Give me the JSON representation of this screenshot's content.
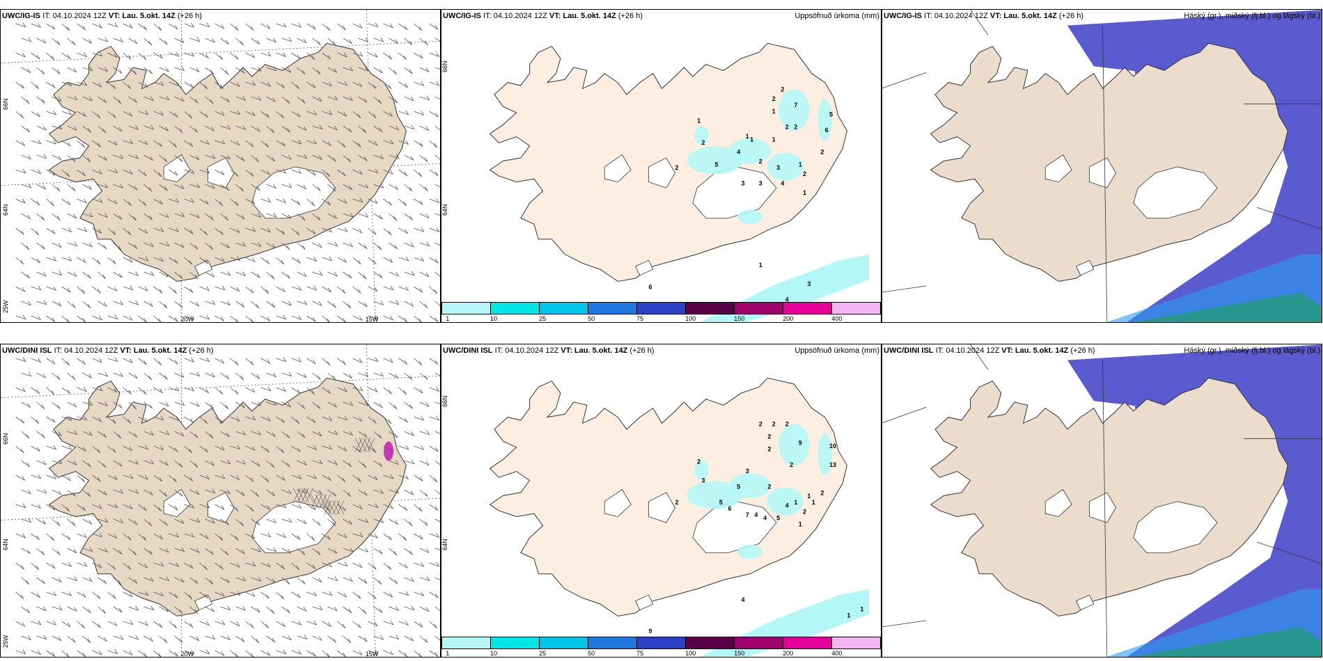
{
  "panels": [
    {
      "id": "wind-ig",
      "model": "UWC/IG-IS",
      "it": "IT: 04.10.2024 12Z",
      "vt": "VT: Lau. 5.okt. 14Z",
      "lead": "(+26 h)",
      "right": "",
      "type": "wind"
    },
    {
      "id": "precip-ig",
      "model": "UWC/IG-IS",
      "it": "IT: 04.10.2024 12Z",
      "vt": "VT: Lau. 5.okt. 14Z",
      "lead": "(+26 h)",
      "right": "Uppsöfnuð úrkoma (mm)",
      "type": "precip"
    },
    {
      "id": "cloud-ig",
      "model": "UWC/IG-IS",
      "it": "IT: 04.10.2024 12Z",
      "vt": "VT: Lau. 5.okt. 14Z",
      "lead": "(+26 h)",
      "right": "Háský (gr.), miðský (fj.bl.) og lágský (bl.)",
      "type": "cloud"
    },
    {
      "id": "wind-dini",
      "model": "UWC/DINI ISL",
      "it": "IT: 04.10.2024 12Z",
      "vt": "VT: Lau. 5.okt. 14Z",
      "lead": "(+26 h)",
      "right": "",
      "type": "wind"
    },
    {
      "id": "precip-dini",
      "model": "UWC/DINI ISL",
      "it": "IT: 04.10.2024 12Z",
      "vt": "VT: Lau. 5.okt. 14Z",
      "lead": "(+26 h)",
      "right": "Uppsöfnuð úrkoma (mm)",
      "type": "precip"
    },
    {
      "id": "cloud-dini",
      "model": "UWC/DINI ISL",
      "it": "IT: 04.10.2024 12Z",
      "vt": "VT: Lau. 5.okt. 14Z",
      "lead": "(+26 h)",
      "right": "Háský (gr.), miðský (fj.bl.) og lágský (bl.)",
      "type": "cloud"
    }
  ],
  "lat_labels": [
    "66N",
    "64N"
  ],
  "lat_labels_right": [
    "66N",
    "64N"
  ],
  "lon_labels": [
    "25W",
    "20W",
    "15W"
  ],
  "colorbar": {
    "ticks": [
      "1",
      "10",
      "25",
      "50",
      "75",
      "100",
      "150",
      "200",
      "400"
    ],
    "colors": [
      "#b3f7f7",
      "#00e6e6",
      "#00c5e8",
      "#1f78e0",
      "#2b3fc7",
      "#5a0046",
      "#a0006b",
      "#e6009a",
      "#f4b4f4"
    ]
  },
  "precip_ig": [
    {
      "v": "1",
      "xf": 0.58,
      "yf": 0.36
    },
    {
      "v": "2",
      "xf": 0.59,
      "yf": 0.43
    },
    {
      "v": "2",
      "xf": 0.77,
      "yf": 0.26
    },
    {
      "v": "2",
      "xf": 0.75,
      "yf": 0.29
    },
    {
      "v": "1",
      "xf": 0.75,
      "yf": 0.33
    },
    {
      "v": "7",
      "xf": 0.8,
      "yf": 0.31
    },
    {
      "v": "5",
      "xf": 0.88,
      "yf": 0.34
    },
    {
      "v": "6",
      "xf": 0.87,
      "yf": 0.39
    },
    {
      "v": "2",
      "xf": 0.78,
      "yf": 0.38
    },
    {
      "v": "2",
      "xf": 0.8,
      "yf": 0.38
    },
    {
      "v": "1",
      "xf": 0.69,
      "yf": 0.41
    },
    {
      "v": "1",
      "xf": 0.7,
      "yf": 0.42
    },
    {
      "v": "1",
      "xf": 0.75,
      "yf": 0.42
    },
    {
      "v": "2",
      "xf": 0.86,
      "yf": 0.46
    },
    {
      "v": "4",
      "xf": 0.67,
      "yf": 0.46
    },
    {
      "v": "2",
      "xf": 0.72,
      "yf": 0.49
    },
    {
      "v": "5",
      "xf": 0.62,
      "yf": 0.5
    },
    {
      "v": "3",
      "xf": 0.76,
      "yf": 0.51
    },
    {
      "v": "1",
      "xf": 0.81,
      "yf": 0.5
    },
    {
      "v": "2",
      "xf": 0.82,
      "yf": 0.53
    },
    {
      "v": "3",
      "xf": 0.68,
      "yf": 0.56
    },
    {
      "v": "3",
      "xf": 0.72,
      "yf": 0.56
    },
    {
      "v": "4",
      "xf": 0.77,
      "yf": 0.56
    },
    {
      "v": "1",
      "xf": 0.82,
      "yf": 0.59
    },
    {
      "v": "2",
      "xf": 0.53,
      "yf": 0.51
    },
    {
      "v": "1",
      "xf": 0.72,
      "yf": 0.82
    },
    {
      "v": "3",
      "xf": 0.83,
      "yf": 0.88
    },
    {
      "v": "6",
      "xf": 0.47,
      "yf": 0.89
    },
    {
      "v": "4",
      "xf": 0.78,
      "yf": 0.93
    }
  ],
  "precip_dini": [
    {
      "v": "2",
      "xf": 0.72,
      "yf": 0.26
    },
    {
      "v": "2",
      "xf": 0.75,
      "yf": 0.26
    },
    {
      "v": "2",
      "xf": 0.78,
      "yf": 0.26
    },
    {
      "v": "2",
      "xf": 0.74,
      "yf": 0.3
    },
    {
      "v": "9",
      "xf": 0.81,
      "yf": 0.32
    },
    {
      "v": "2",
      "xf": 0.74,
      "yf": 0.34
    },
    {
      "v": "10",
      "xf": 0.88,
      "yf": 0.33
    },
    {
      "v": "2",
      "xf": 0.58,
      "yf": 0.38
    },
    {
      "v": "2",
      "xf": 0.79,
      "yf": 0.39
    },
    {
      "v": "13",
      "xf": 0.88,
      "yf": 0.39
    },
    {
      "v": "3",
      "xf": 0.69,
      "yf": 0.41
    },
    {
      "v": "3",
      "xf": 0.59,
      "yf": 0.44
    },
    {
      "v": "5",
      "xf": 0.67,
      "yf": 0.46
    },
    {
      "v": "2",
      "xf": 0.74,
      "yf": 0.46
    },
    {
      "v": "1",
      "xf": 0.83,
      "yf": 0.49
    },
    {
      "v": "2",
      "xf": 0.86,
      "yf": 0.48
    },
    {
      "v": "5",
      "xf": 0.63,
      "yf": 0.51
    },
    {
      "v": "6",
      "xf": 0.65,
      "yf": 0.53
    },
    {
      "v": "4",
      "xf": 0.78,
      "yf": 0.52
    },
    {
      "v": "1",
      "xf": 0.8,
      "yf": 0.51
    },
    {
      "v": "1",
      "xf": 0.84,
      "yf": 0.51
    },
    {
      "v": "7",
      "xf": 0.69,
      "yf": 0.55
    },
    {
      "v": "4",
      "xf": 0.71,
      "yf": 0.55
    },
    {
      "v": "4",
      "xf": 0.73,
      "yf": 0.56
    },
    {
      "v": "5",
      "xf": 0.76,
      "yf": 0.56
    },
    {
      "v": "2",
      "xf": 0.82,
      "yf": 0.54
    },
    {
      "v": "1",
      "xf": 0.81,
      "yf": 0.58
    },
    {
      "v": "2",
      "xf": 0.53,
      "yf": 0.51
    },
    {
      "v": "4",
      "xf": 0.68,
      "yf": 0.82
    },
    {
      "v": "1",
      "xf": 0.92,
      "yf": 0.87
    },
    {
      "v": "1",
      "xf": 0.95,
      "yf": 0.85
    },
    {
      "v": "9",
      "xf": 0.47,
      "yf": 0.92
    }
  ]
}
